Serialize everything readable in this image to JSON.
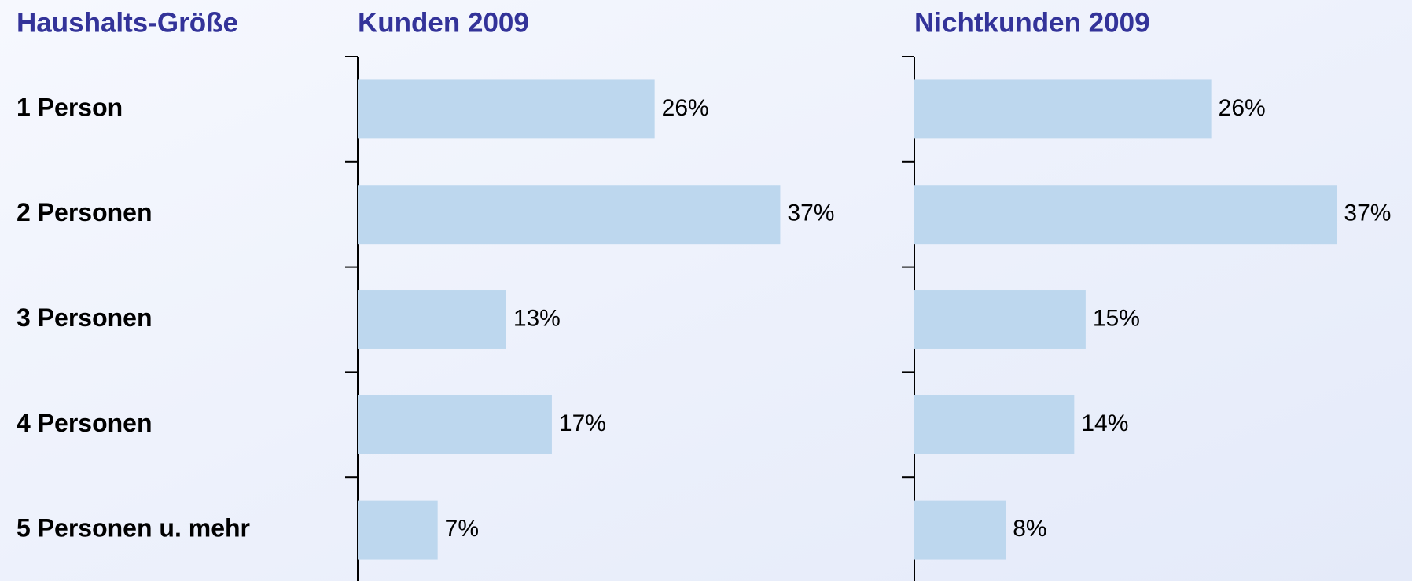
{
  "chart_data": [
    {
      "type": "bar",
      "orientation": "horizontal",
      "title": "Kunden 2009",
      "ylabel": "Haushalts-Größe",
      "categories": [
        "1 Person",
        "2 Personen",
        "3 Personen",
        "4 Personen",
        "5 Personen u. mehr"
      ],
      "values": [
        26,
        37,
        13,
        17,
        7
      ],
      "value_labels": [
        "26%",
        "37%",
        "13%",
        "17%",
        "7%"
      ],
      "color": "#bdd7ee",
      "xlim": [
        0,
        40
      ]
    },
    {
      "type": "bar",
      "orientation": "horizontal",
      "title": "Nichtkunden 2009",
      "values": [
        26,
        37,
        15,
        14,
        8
      ],
      "value_labels": [
        "26%",
        "37%",
        "15%",
        "14%",
        "8%"
      ],
      "color": "#bdd7ee",
      "xlim": [
        0,
        40
      ]
    }
  ]
}
